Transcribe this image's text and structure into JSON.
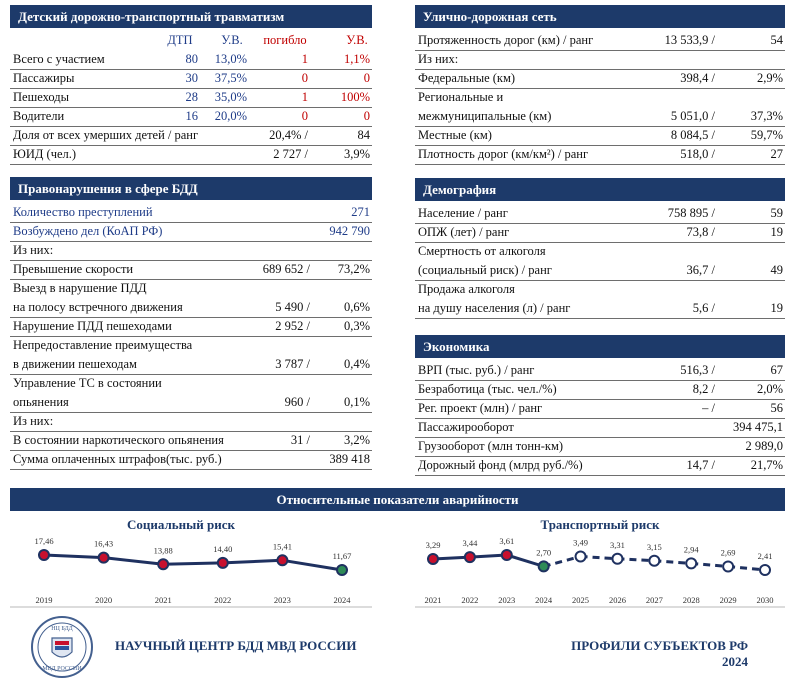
{
  "child_injury": {
    "title": "Детский дорожно-транспортный травматизм",
    "columns": [
      "ДТП",
      "У.В.",
      "погибло",
      "У.В."
    ],
    "column_colors": [
      "#1f3c88",
      "#1f3c88",
      "#c00000",
      "#c00000"
    ],
    "rows": [
      {
        "label": "Всего с участием",
        "values": [
          "80",
          "13,0%",
          "1",
          "1,1%"
        ]
      },
      {
        "label": "Пассажиры",
        "values": [
          "30",
          "37,5%",
          "0",
          "0"
        ]
      },
      {
        "label": "Пешеходы",
        "values": [
          "28",
          "35,0%",
          "1",
          "100%"
        ]
      },
      {
        "label": "Водители",
        "values": [
          "16",
          "20,0%",
          "0",
          "0"
        ]
      }
    ],
    "summary": [
      {
        "label": [
          "Доля от всех умерших детей / ранг"
        ],
        "value": "20,4% /",
        "share": "84"
      },
      {
        "label": [
          "ЮИД (чел.)"
        ],
        "value": "2 727 /",
        "share": "3,9%"
      }
    ]
  },
  "violations": {
    "title": "Правонарушения в сфере БДД",
    "rows": [
      {
        "label": [
          "Количество преступлений"
        ],
        "share": "271",
        "color": "#1f3c88"
      },
      {
        "label": [
          "Возбуждено дел (КоАП РФ)"
        ],
        "share": "942 790",
        "color": "#1f3c88"
      },
      {
        "label": [
          "Из них:"
        ]
      },
      {
        "label": [
          "Превышение скорости"
        ],
        "value": "689 652 /",
        "share": "73,2%"
      },
      {
        "label": [
          "Выезд в нарушение ПДД",
          "на полосу встречного движения"
        ],
        "value": "5 490 /",
        "share": "0,6%"
      },
      {
        "label": [
          "Нарушение ПДД пешеходами"
        ],
        "value": "2 952 /",
        "share": "0,3%"
      },
      {
        "label": [
          "Непредоставление преимущества",
          " в движении пешеходам"
        ],
        "value": "3 787 /",
        "share": "0,4%"
      },
      {
        "label": [
          "Управление ТС в состоянии",
          "опьянения"
        ],
        "value": "960 /",
        "share": "0,1%"
      },
      {
        "label": [
          "Из них:"
        ]
      },
      {
        "label": [
          "В состоянии наркотического опьянения"
        ],
        "value": "31 /",
        "share": "3,2%"
      },
      {
        "label": [
          "Сумма оплаченных штрафов(тыс. руб.)"
        ],
        "share": "389 418"
      }
    ]
  },
  "road_network": {
    "title": "Улично-дорожная сеть",
    "rows": [
      {
        "label": [
          "Протяженность дорог (км) / ранг"
        ],
        "value": "13 533,9 /",
        "share": "54"
      },
      {
        "label": [
          "Из них:"
        ]
      },
      {
        "label": [
          "Федеральные (км)"
        ],
        "value": "398,4 /",
        "share": "2,9%"
      },
      {
        "label": [
          "Региональные и",
          "межмуниципальные (км)"
        ],
        "value": "5 051,0 /",
        "share": "37,3%"
      },
      {
        "label": [
          "Местные (км)"
        ],
        "value": "8 084,5 /",
        "share": "59,7%"
      },
      {
        "label": [
          "Плотность дорог (км/км²) / ранг"
        ],
        "value": "518,0 /",
        "share": "27"
      }
    ]
  },
  "demography": {
    "title": "Демография",
    "rows": [
      {
        "label": [
          "Население / ранг"
        ],
        "value": "758 895 /",
        "share": "59"
      },
      {
        "label": [
          "ОПЖ (лет) / ранг"
        ],
        "value": "73,8 /",
        "share": "19"
      },
      {
        "label": [
          "Смертность от алкоголя",
          "(социальный риск) / ранг"
        ],
        "value": "36,7 /",
        "share": "49"
      },
      {
        "label": [
          "Продажа алкоголя",
          "на душу населения (л) / ранг"
        ],
        "value": "5,6 /",
        "share": "19"
      }
    ]
  },
  "economy": {
    "title": "Экономика",
    "rows": [
      {
        "label": [
          "ВРП (тыс. руб.) / ранг"
        ],
        "value": "516,3 /",
        "share": "67"
      },
      {
        "label": [
          "Безработица (тыс. чел./%)"
        ],
        "value": "8,2 /",
        "share": "2,0%"
      },
      {
        "label": [
          "Рег. проект (млн) / ранг"
        ],
        "value": "– /",
        "share": "56"
      },
      {
        "label": [
          "Пассажирооборот"
        ],
        "share": "394 475,1"
      },
      {
        "label": [
          "Грузооборот (млн тонн-км)"
        ],
        "share": "2 989,0"
      },
      {
        "label": [
          "Дорожный фонд (млрд руб./%)"
        ],
        "value": "14,7 /",
        "share": "21,7%"
      }
    ]
  },
  "risk": {
    "title": "Относительные показатели аварийности",
    "charts": [
      {
        "type": "line",
        "title": "Социальный риск",
        "categories": [
          "2019",
          "2020",
          "2021",
          "2022",
          "2023",
          "2024"
        ],
        "values": [
          17.46,
          16.43,
          13.88,
          14.4,
          15.41,
          11.67
        ],
        "value_labels": [
          "17,46",
          "16,43",
          "13,88",
          "14,40",
          "15,41",
          "11,67"
        ],
        "color": "#1f3160",
        "marker_colors": [
          "#c8102e",
          "#c8102e",
          "#c8102e",
          "#c8102e",
          "#c8102e",
          "#2e8b57"
        ],
        "dashed": [
          false,
          false,
          false,
          false,
          false,
          false
        ]
      },
      {
        "type": "line",
        "title": "Транспортный риск",
        "categories": [
          "2021",
          "2022",
          "2023",
          "2024",
          "2025",
          "2026",
          "2027",
          "2028",
          "2029",
          "2030"
        ],
        "values": [
          3.29,
          3.44,
          3.61,
          2.7,
          3.49,
          3.31,
          3.15,
          2.94,
          2.69,
          2.41
        ],
        "value_labels": [
          "3,29",
          "3,44",
          "3,61",
          "2,70",
          "3,49",
          "3,31",
          "3,15",
          "2,94",
          "2,69",
          "2,41"
        ],
        "color": "#1f3160",
        "marker_colors": [
          "#c8102e",
          "#c8102e",
          "#c8102e",
          "#2e8b57",
          "#ffffff",
          "#ffffff",
          "#ffffff",
          "#ffffff",
          "#ffffff",
          "#ffffff"
        ],
        "dashed": [
          false,
          false,
          false,
          false,
          true,
          true,
          true,
          true,
          true,
          true
        ]
      }
    ]
  },
  "footer": {
    "logo_top": "НЦ БДД",
    "logo_bottom": "МВД РОССИИ",
    "org": "НАУЧНЫЙ ЦЕНТР БДД МВД РОССИИ",
    "product": "ПРОФИЛИ СУБЪЕКТОВ РФ",
    "year": "2024"
  }
}
